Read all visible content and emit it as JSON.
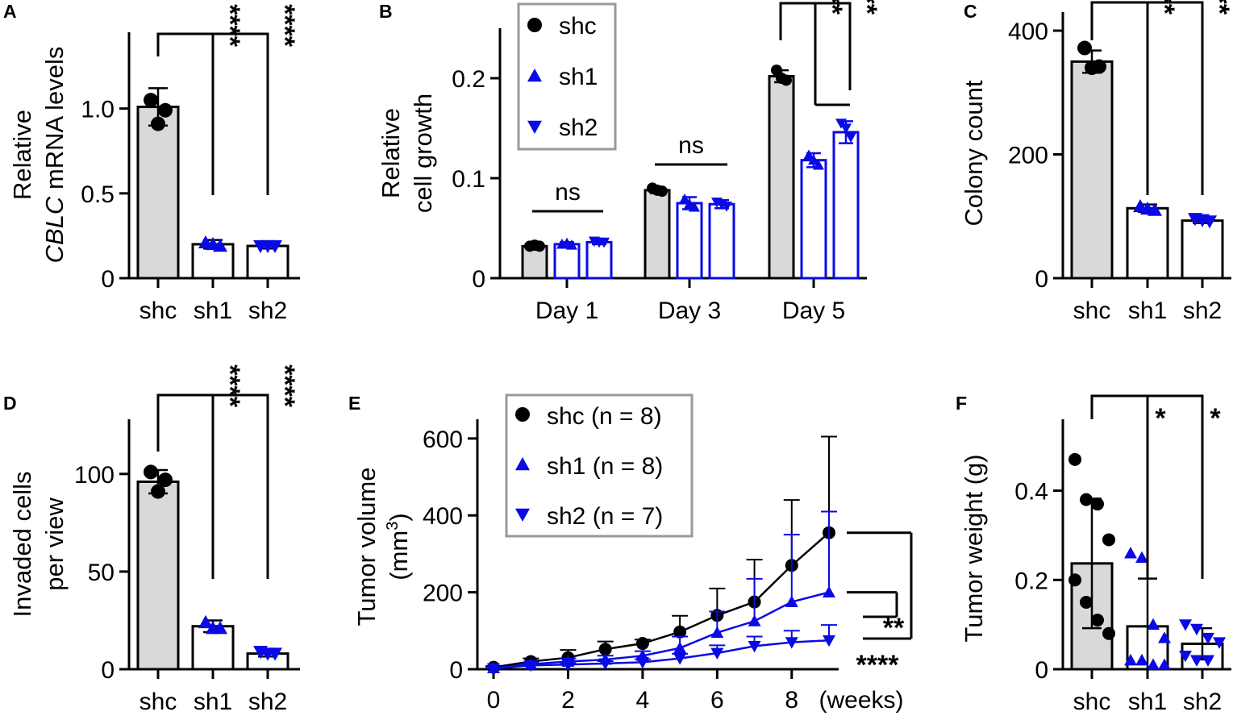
{
  "colors": {
    "ctrl_fill": "#d9d9d9",
    "knock": "#0a0ae6",
    "black": "#000000",
    "legend_border": "#999999"
  },
  "chart_data": [
    {
      "id": "A",
      "type": "bar",
      "panel_label": "A",
      "ylabel_line1": "Relative",
      "ylabel_italic": "CBLC",
      "ylabel_rest": " mRNA levels",
      "ylim": [
        0,
        1.45
      ],
      "ticks": [
        {
          "v": 0,
          "label": "0"
        },
        {
          "v": 0.5,
          "label": "0.5"
        },
        {
          "v": 1.0,
          "label": "1.0"
        }
      ],
      "categories": [
        "shc",
        "sh1",
        "sh2"
      ],
      "means": [
        1.01,
        0.2,
        0.19
      ],
      "errors": [
        0.11,
        0.025,
        0.015
      ],
      "points": [
        [
          1.05,
          0.99,
          0.91
        ],
        [
          0.21,
          0.19,
          0.2
        ],
        [
          0.19,
          0.19,
          0.19
        ]
      ],
      "significance": [
        "****",
        "****"
      ]
    },
    {
      "id": "B",
      "type": "bar",
      "panel_label": "B",
      "ylabel_line1": "Relative",
      "ylabel_line2": "cell growth",
      "ylim": [
        0,
        0.25
      ],
      "ticks": [
        {
          "v": 0,
          "label": "0"
        },
        {
          "v": 0.1,
          "label": "0.1"
        },
        {
          "v": 0.2,
          "label": "0.2"
        }
      ],
      "groups": [
        "Day 1",
        "Day 3",
        "Day 5"
      ],
      "series": [
        {
          "name": "shc",
          "means": [
            0.032,
            0.088,
            0.202
          ],
          "errors": [
            0.002,
            0.003,
            0.006
          ],
          "points": [
            [
              0.032,
              0.032,
              0.033
            ],
            [
              0.09,
              0.087,
              0.088
            ],
            [
              0.208,
              0.198,
              0.2
            ]
          ]
        },
        {
          "name": "sh1",
          "means": [
            0.034,
            0.075,
            0.118
          ],
          "errors": [
            0.002,
            0.006,
            0.007
          ],
          "points": [
            [
              0.034,
              0.033,
              0.035
            ],
            [
              0.079,
              0.071,
              0.074
            ],
            [
              0.123,
              0.113,
              0.118
            ]
          ]
        },
        {
          "name": "sh2",
          "means": [
            0.036,
            0.074,
            0.146
          ],
          "errors": [
            0.002,
            0.004,
            0.011
          ],
          "points": [
            [
              0.037,
              0.036,
              0.036
            ],
            [
              0.076,
              0.072,
              0.074
            ],
            [
              0.155,
              0.141,
              0.15
            ]
          ]
        }
      ],
      "ns_labels": [
        "ns",
        "ns"
      ],
      "significance": [
        "****",
        "****"
      ],
      "legend": [
        "shc",
        "sh1",
        "sh2"
      ]
    },
    {
      "id": "C",
      "type": "bar",
      "panel_label": "C",
      "ylabel": "Colony count",
      "ylim": [
        0,
        430
      ],
      "ticks": [
        {
          "v": 0,
          "label": "0"
        },
        {
          "v": 200,
          "label": "200"
        },
        {
          "v": 400,
          "label": "400"
        }
      ],
      "categories": [
        "shc",
        "sh1",
        "sh2"
      ],
      "means": [
        350,
        113,
        93
      ],
      "errors": [
        18,
        6,
        4
      ],
      "points": [
        [
          372,
          342,
          340
        ],
        [
          116,
          110,
          112
        ],
        [
          96,
          92,
          94
        ]
      ],
      "significance": [
        "****",
        "****"
      ]
    },
    {
      "id": "D",
      "type": "bar",
      "panel_label": "D",
      "ylabel_line1": "Invaded cells",
      "ylabel_line2": "per view",
      "ylim": [
        0,
        128
      ],
      "ticks": [
        {
          "v": 0,
          "label": "0"
        },
        {
          "v": 50,
          "label": "50"
        },
        {
          "v": 100,
          "label": "100"
        }
      ],
      "categories": [
        "shc",
        "sh1",
        "sh2"
      ],
      "means": [
        96,
        22,
        8
      ],
      "errors": [
        6,
        3,
        1.5
      ],
      "points": [
        [
          101,
          97,
          91
        ],
        [
          24,
          21,
          21
        ],
        [
          9,
          8,
          8
        ]
      ],
      "significance": [
        "****",
        "****"
      ]
    },
    {
      "id": "E",
      "type": "line",
      "panel_label": "E",
      "ylabel": "Tumor volume",
      "ylabel_unit": "(mm",
      "ylabel_sup": "3",
      "ylabel_close": ")",
      "ylim": [
        0,
        650
      ],
      "ticks": [
        {
          "v": 0,
          "label": "0"
        },
        {
          "v": 200,
          "label": "200"
        },
        {
          "v": 400,
          "label": "400"
        },
        {
          "v": 600,
          "label": "600"
        }
      ],
      "xlim": [
        0,
        9
      ],
      "xticks": [
        {
          "v": 0,
          "label": "0"
        },
        {
          "v": 2,
          "label": "2"
        },
        {
          "v": 4,
          "label": "4"
        },
        {
          "v": 6,
          "label": "6"
        },
        {
          "v": 8,
          "label": "8"
        }
      ],
      "xunit": "(weeks)",
      "x": [
        0,
        1,
        2,
        3,
        4,
        5,
        6,
        7,
        8,
        9
      ],
      "series": [
        {
          "name": "shc (n = 8)",
          "values": [
            5,
            20,
            30,
            52,
            67,
            97,
            140,
            175,
            270,
            355
          ],
          "errors": [
            3,
            8,
            20,
            20,
            10,
            42,
            70,
            110,
            170,
            250
          ]
        },
        {
          "name": "sh1 (n = 8)",
          "values": [
            3,
            13,
            20,
            25,
            35,
            55,
            95,
            125,
            175,
            200
          ],
          "errors": [
            2,
            5,
            8,
            10,
            12,
            30,
            55,
            110,
            175,
            210
          ]
        },
        {
          "name": "sh2 (n = 7)",
          "values": [
            2,
            10,
            12,
            15,
            18,
            28,
            42,
            60,
            70,
            75
          ],
          "errors": [
            1,
            3,
            4,
            6,
            8,
            12,
            20,
            25,
            30,
            40
          ]
        }
      ],
      "significance": [
        "**",
        "****"
      ],
      "legend": [
        "shc (n = 8)",
        "sh1 (n = 8)",
        "sh2 (n = 7)"
      ]
    },
    {
      "id": "F",
      "type": "bar",
      "panel_label": "F",
      "ylabel": "Tumor weight (g)",
      "ylim": [
        0,
        0.56
      ],
      "ticks": [
        {
          "v": 0,
          "label": "0"
        },
        {
          "v": 0.2,
          "label": "0.2"
        },
        {
          "v": 0.4,
          "label": "0.4"
        }
      ],
      "categories": [
        "shc",
        "sh1",
        "sh2"
      ],
      "means": [
        0.237,
        0.096,
        0.057
      ],
      "errors": [
        0.145,
        0.107,
        0.035
      ],
      "points": [
        [
          0.47,
          0.38,
          0.37,
          0.29,
          0.2,
          0.15,
          0.11,
          0.08
        ],
        [
          0.26,
          0.25,
          0.1,
          0.07,
          0.02,
          0.02,
          0.01,
          0.01
        ],
        [
          0.1,
          0.09,
          0.07,
          0.06,
          0.03,
          0.02,
          0.02
        ]
      ],
      "significance": [
        "*",
        "*"
      ]
    }
  ]
}
